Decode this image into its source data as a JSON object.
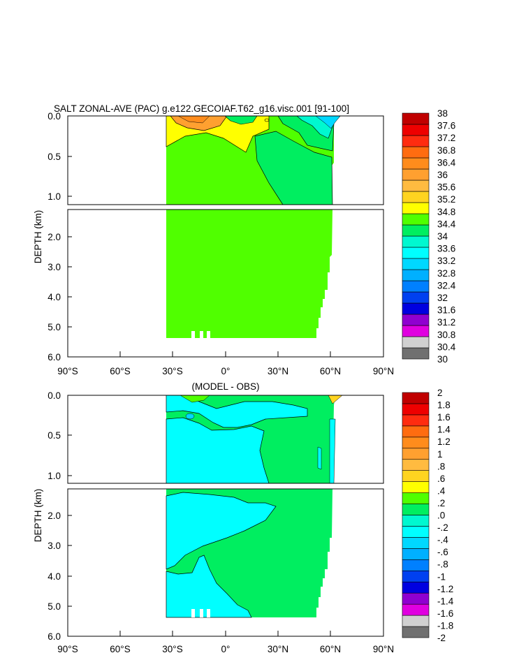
{
  "colors": {
    "salt_scale": [
      "#707070",
      "#d0d0d0",
      "#e000e0",
      "#9000d0",
      "#0000e0",
      "#0040f0",
      "#0080ff",
      "#00b0ff",
      "#00d8ff",
      "#00ffff",
      "#00f8d0",
      "#00ee60",
      "#50ff00",
      "#ffff00",
      "#ffd420",
      "#ffbb40",
      "#ffa030",
      "#ff8c1c",
      "#ff6c10",
      "#ff2c10",
      "#ee0000",
      "#c00000"
    ],
    "diff_scale": [
      "#707070",
      "#d0d0d0",
      "#e000e0",
      "#9000d0",
      "#0000e0",
      "#0040f0",
      "#0080ff",
      "#00b0ff",
      "#00d8ff",
      "#00ffff",
      "#00f8d0",
      "#00ee60",
      "#50ff00",
      "#ffff00",
      "#ffd420",
      "#ffbb40",
      "#ffa030",
      "#ff8c1c",
      "#ff6c10",
      "#ff2c10",
      "#ee0000",
      "#c00000"
    ]
  },
  "chart_data": [
    {
      "type": "heatmap",
      "title": "SALT ZONAL-AVE (PAC) g.e122.GECOIAF.T62_g16.visc.001 [91-100]",
      "ylabel": "DEPTH (km)",
      "x_ticks": [
        "90°S",
        "60°S",
        "30°S",
        "0°",
        "30°N",
        "60°N",
        "90°N"
      ],
      "y_ticks_upper": [
        "0.0",
        "0.5",
        "1.0"
      ],
      "y_ticks_lower": [
        "2.0",
        "3.0",
        "4.0",
        "5.0",
        "6.0"
      ],
      "xlim": [
        -90,
        90
      ],
      "ylim_upper_km": [
        0,
        1.1
      ],
      "ylim_lower_km": [
        1.1,
        6
      ],
      "colorbar_labels": [
        "38",
        "37.6",
        "37.2",
        "36.8",
        "36.4",
        "36",
        "35.6",
        "35.2",
        "34.8",
        "34.4",
        "34",
        "33.6",
        "33.2",
        "32.8",
        "32.4",
        "32",
        "31.6",
        "31.2",
        "30.8",
        "30.4",
        "30"
      ],
      "dominant_value_range": [
        34.4,
        34.8
      ],
      "data_lat_range": [
        -33,
        62
      ]
    },
    {
      "type": "heatmap",
      "title": "(MODEL - OBS)",
      "ylabel": "DEPTH (km)",
      "x_ticks": [
        "90°S",
        "60°S",
        "30°S",
        "0°",
        "30°N",
        "60°N",
        "90°N"
      ],
      "y_ticks_upper": [
        "0.0",
        "0.5",
        "1.0"
      ],
      "y_ticks_lower": [
        "2.0",
        "3.0",
        "4.0",
        "5.0",
        "6.0"
      ],
      "xlim": [
        -90,
        90
      ],
      "ylim_upper_km": [
        0,
        1.1
      ],
      "ylim_lower_km": [
        1.1,
        6
      ],
      "colorbar_labels": [
        "2",
        "1.8",
        "1.6",
        "1.4",
        "1.2",
        "1",
        ".8",
        ".6",
        ".4",
        ".2",
        ".0",
        "-.2",
        "-.4",
        "-.6",
        "-.8",
        "-1",
        "-1.2",
        "-1.4",
        "-1.6",
        "-1.8",
        "-2"
      ],
      "dominant_value_range": [
        0.0,
        0.2
      ],
      "data_lat_range": [
        -33,
        62
      ]
    }
  ]
}
